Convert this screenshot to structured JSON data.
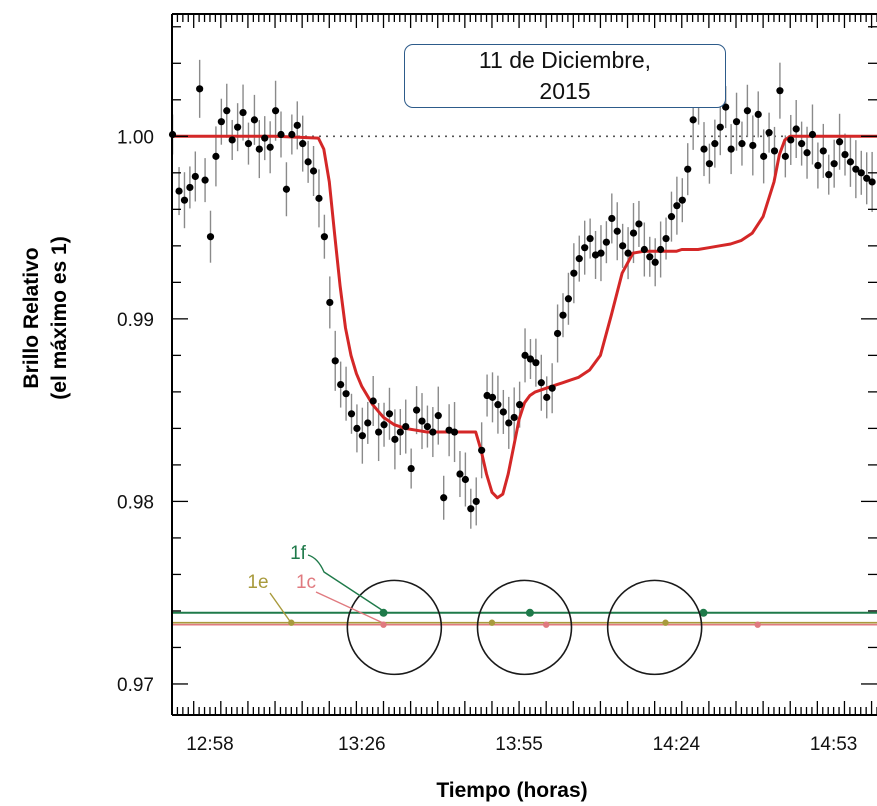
{
  "chart_data": {
    "type": "scatter",
    "annotation": {
      "line1": "11 de Diciembre,",
      "line2": "2015"
    },
    "xlabel": "Tiempo (horas)",
    "ylabel_line1": "Brillo Relativo",
    "ylabel_line2": "(el máximo es 1)",
    "x_tick_labels": [
      "12:58",
      "13:26",
      "13:55",
      "14:24",
      "14:53"
    ],
    "x_ticks_min": [
      778,
      806,
      835,
      864,
      893
    ],
    "xlim_min": [
      771,
      901
    ],
    "y_ticks": [
      0.97,
      0.98,
      0.99,
      1.0
    ],
    "y_tick_labels": [
      "0.97",
      "0.98",
      "0.99",
      "1.00"
    ],
    "ylim": [
      0.9683,
      1.0067
    ],
    "reference_line": 1.0,
    "grid": false,
    "series": [
      {
        "kind": "observations",
        "x_min": [
          771.1,
          772.3,
          773.3,
          774.3,
          775.3,
          776.1,
          777.1,
          778.1,
          779.1,
          780.1,
          781.1,
          782.1,
          783.1,
          784.1,
          785.1,
          786.2,
          787.1,
          788.1,
          789.1,
          790.1,
          791.1,
          792.1,
          793.1,
          794.1,
          795.1,
          796.1,
          797.1,
          798.1,
          799.1,
          800.1,
          801.1,
          802.1,
          803.1,
          804.1,
          805.1,
          806.1,
          807.1,
          808.1,
          809.1,
          810.1,
          811.1,
          812.1,
          813.1,
          814.1,
          815.1,
          816.1,
          817.1,
          818.1,
          819.1,
          820.1,
          821.1,
          822.1,
          823.1,
          824.1,
          825.1,
          826.1,
          827.1,
          828.1,
          829.1,
          830.1,
          831.1,
          832.1,
          833.1,
          834.1,
          835.1,
          836.1,
          837.1,
          838.1,
          839.1,
          840.1,
          841.1,
          842.1,
          843.1,
          844.1,
          845.1,
          846.1,
          847.1,
          848.1,
          849.1,
          850.1,
          851.1,
          852.1,
          853.1,
          854.1,
          855.1,
          856.1,
          857.1,
          858.1,
          859.1,
          860.1,
          861.1,
          862.1,
          863.1,
          864.1,
          865.1,
          866.1,
          867.1,
          868.1,
          869.1,
          870.1,
          871.1,
          872.1,
          873.1,
          874.1,
          875.1,
          876.1,
          877.1,
          878.1,
          879.1,
          880.1,
          881.1,
          882.1,
          883.1,
          884.1,
          885.1,
          886.1,
          887.1,
          888.1,
          889.1,
          890.1,
          891.1,
          892.1,
          893.1,
          894.1,
          895.1,
          896.1,
          897.1,
          898.1,
          899.1,
          900.1
        ],
        "y": [
          1.0001,
          0.997,
          0.9965,
          0.9972,
          0.9978,
          1.0026,
          0.9976,
          0.9945,
          0.9989,
          1.0008,
          1.0014,
          0.9998,
          1.0005,
          1.0013,
          0.9996,
          1.0009,
          0.9993,
          0.9999,
          0.9994,
          1.0014,
          1.0001,
          0.9971,
          1.0001,
          1.0006,
          0.9996,
          0.9986,
          0.9981,
          0.9966,
          0.9945,
          0.9909,
          0.9877,
          0.9864,
          0.9859,
          0.9848,
          0.984,
          0.9836,
          0.9843,
          0.9855,
          0.9838,
          0.9842,
          0.9848,
          0.9834,
          0.9838,
          0.9841,
          0.9818,
          0.985,
          0.9844,
          0.9841,
          0.9838,
          0.9847,
          0.9802,
          0.9839,
          0.9838,
          0.9815,
          0.9812,
          0.9796,
          0.98,
          0.9828,
          0.9858,
          0.9857,
          0.9853,
          0.9849,
          0.9843,
          0.9846,
          0.9853,
          0.988,
          0.9878,
          0.9876,
          0.9865,
          0.9857,
          0.9862,
          0.9892,
          0.9902,
          0.9911,
          0.9925,
          0.9933,
          0.9939,
          0.9944,
          0.9935,
          0.9936,
          0.9942,
          0.9955,
          0.9948,
          0.994,
          0.9936,
          0.9947,
          0.9952,
          0.9938,
          0.9934,
          0.9931,
          0.9938,
          0.9944,
          0.9956,
          0.9962,
          0.9965,
          0.9982,
          1.0009,
          1.0019,
          0.9993,
          0.9985,
          0.9996,
          1.0005,
          1.0016,
          0.9993,
          1.0008,
          0.9996,
          1.0014,
          0.9995,
          1.0012,
          0.9989,
          1.0002,
          0.9992,
          1.0025,
          0.9989,
          0.9998,
          1.0004,
          0.9996,
          0.9991,
          1.0001,
          0.9984,
          0.9992,
          0.9979,
          0.9985,
          0.9997,
          0.999,
          0.9986,
          0.9982,
          0.998,
          0.9977,
          0.9975
        ]
      },
      {
        "kind": "model_fit",
        "color": "#d42727",
        "x_min": [
          771,
          790,
          798,
          799,
          800,
          801,
          802,
          803,
          804,
          805,
          806,
          808,
          810,
          812,
          814,
          816,
          818,
          820,
          822,
          824,
          826,
          827,
          828,
          829,
          830,
          831,
          832,
          833,
          834,
          835,
          836,
          837,
          838,
          839,
          840,
          841,
          842,
          843,
          844,
          846,
          848,
          850,
          852,
          854,
          856,
          858,
          860,
          861,
          862,
          863,
          864,
          865,
          866,
          868,
          870,
          872,
          874,
          876,
          878,
          880,
          882,
          883,
          884,
          885,
          886,
          887,
          888,
          890,
          901
        ],
        "y": [
          1.0,
          1.0,
          0.9999,
          0.9993,
          0.9975,
          0.9946,
          0.9918,
          0.9895,
          0.988,
          0.987,
          0.9863,
          0.9853,
          0.9846,
          0.9842,
          0.984,
          0.9839,
          0.9838,
          0.9838,
          0.9838,
          0.9838,
          0.9838,
          0.9838,
          0.9828,
          0.9815,
          0.9805,
          0.9802,
          0.9804,
          0.9815,
          0.983,
          0.9845,
          0.9854,
          0.9858,
          0.986,
          0.9861,
          0.9862,
          0.9863,
          0.9864,
          0.9865,
          0.9866,
          0.9868,
          0.9872,
          0.988,
          0.9902,
          0.9925,
          0.9936,
          0.9937,
          0.9937,
          0.9937,
          0.9937,
          0.9937,
          0.9937,
          0.9938,
          0.9938,
          0.9938,
          0.9939,
          0.994,
          0.9941,
          0.9943,
          0.9947,
          0.9956,
          0.9975,
          0.999,
          0.9998,
          1.0,
          1.0,
          1.0,
          1.0,
          1.0,
          1.0
        ]
      }
    ],
    "orbit_lines": [
      {
        "name": "1f",
        "color": "#1f7a4a",
        "y": 0.9739,
        "points_min": [
          810,
          837,
          869
        ]
      },
      {
        "name": "1e",
        "color": "#a89a3c",
        "y": 0.9733,
        "points_min": [
          793,
          830,
          862
        ]
      },
      {
        "name": "1c",
        "color": "#e07a7f",
        "y": 0.9733,
        "points_min": [
          810,
          840,
          879
        ]
      }
    ],
    "orbit_line_colors": {
      "red": "#e07a7f",
      "olive": "#a89a3c"
    },
    "stars": [
      {
        "x_center_min": 812,
        "y_center": 0.9731
      },
      {
        "x_center_min": 836,
        "y_center": 0.9731
      },
      {
        "x_center_min": 860,
        "y_center": 0.9731
      }
    ],
    "colors": {
      "points": "#000000",
      "errorbars": "#8a8a8a",
      "fit": "#d42727",
      "circles": "#1a1a1a"
    }
  }
}
